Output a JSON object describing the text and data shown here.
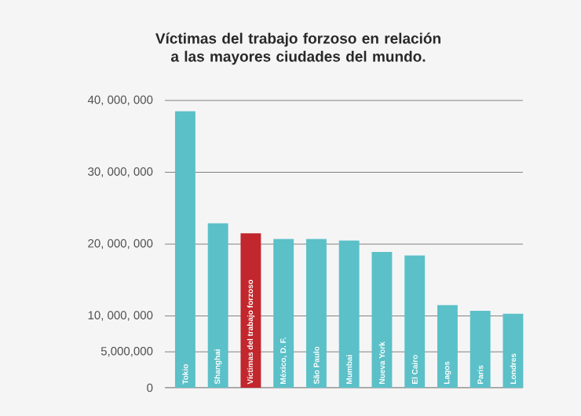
{
  "chart_data": {
    "type": "bar",
    "title": "Víctimas del trabajo forzoso en relación a las mayores ciudades del mundo.",
    "categories": [
      "Tokio",
      "Shanghai",
      "Víctimas del trabajo forzoso",
      "México, D. F.",
      "São Paulo",
      "Mumbai",
      "Nueva York",
      "El Cairo",
      "Lagos",
      "Paris",
      "Londres"
    ],
    "values": [
      38500000,
      22900000,
      21500000,
      20700000,
      20700000,
      20500000,
      18900000,
      18400000,
      11500000,
      10700000,
      10300000
    ],
    "colors": [
      "#5bc0c8",
      "#5bc0c8",
      "#c1272d",
      "#5bc0c8",
      "#5bc0c8",
      "#5bc0c8",
      "#5bc0c8",
      "#5bc0c8",
      "#5bc0c8",
      "#5bc0c8",
      "#5bc0c8"
    ],
    "ylim": [
      0,
      40000000
    ],
    "yticks": [
      0,
      {
        "value": 5000000,
        "label": "5,000,000"
      },
      {
        "value": 10000000,
        "label": "10, 000, 000"
      },
      {
        "value": 20000000,
        "label": "20, 000, 000"
      },
      {
        "value": 30000000,
        "label": "30, 000, 000"
      },
      {
        "value": 40000000,
        "label": "40, 000, 000"
      }
    ],
    "grid": "y"
  }
}
